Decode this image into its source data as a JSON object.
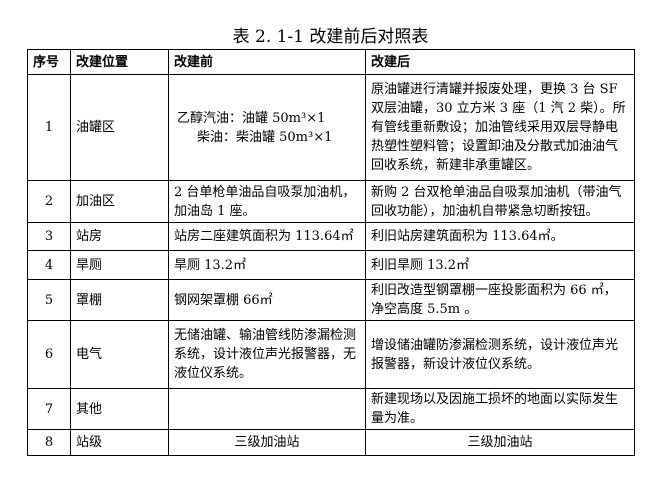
{
  "title": "表 2. 1-1 改建前后对照表",
  "headers": [
    "序号",
    "改建位置",
    "改建前",
    "改建后"
  ],
  "rows": [
    {
      "no": "1",
      "location": "油罐区",
      "before_lines": [
        "乙醇汽油：油罐 50m³×1",
        "柴油：柴油罐 50m³×1"
      ],
      "after": "原油罐进行清罐并报废处理，更换 3 台 SF 双层油罐，30 立方米 3 座（1 汽 2 柴）。所有管线重新敷设；加油管线采用双层导静电热塑性塑料管；设置卸油及分散式加油油气回收系统，新建非承重罐区。"
    },
    {
      "no": "2",
      "location": "加油区",
      "before": "2 台单枪单油品自吸泵加油机，加油岛 1 座。",
      "after": "新购 2 台双枪单油品自吸泵加油机（带油气回收功能），加油机自带紧急切断按钮。"
    },
    {
      "no": "3",
      "location": "站房",
      "before": "站房二座建筑面积为 113.64㎡",
      "after": "利旧站房建筑面积为 113.64㎡。"
    },
    {
      "no": "4",
      "location": "旱厕",
      "before": "旱厕 13.2㎡",
      "after": "利旧旱厕 13.2㎡"
    },
    {
      "no": "5",
      "location": "罩棚",
      "before": "钢网架罩棚 66㎡",
      "after": "利旧改造型钢罩棚一座投影面积为 66 ㎡，净空高度 5.5m 。"
    },
    {
      "no": "6",
      "location": "电气",
      "before": "无储油罐、输油管线防渗漏检测系统，设计液位声光报警器，无液位仪系统。",
      "after": "增设储油罐防渗漏检测系统，设计液位声光报警器，新设计液位仪系统。"
    },
    {
      "no": "7",
      "location": "其他",
      "before": "",
      "after": "新建现场以及因施工损坏的地面以实际发生量为准。"
    },
    {
      "no": "8",
      "location": "站级",
      "before": "三级加油站",
      "after": "三级加油站"
    }
  ]
}
